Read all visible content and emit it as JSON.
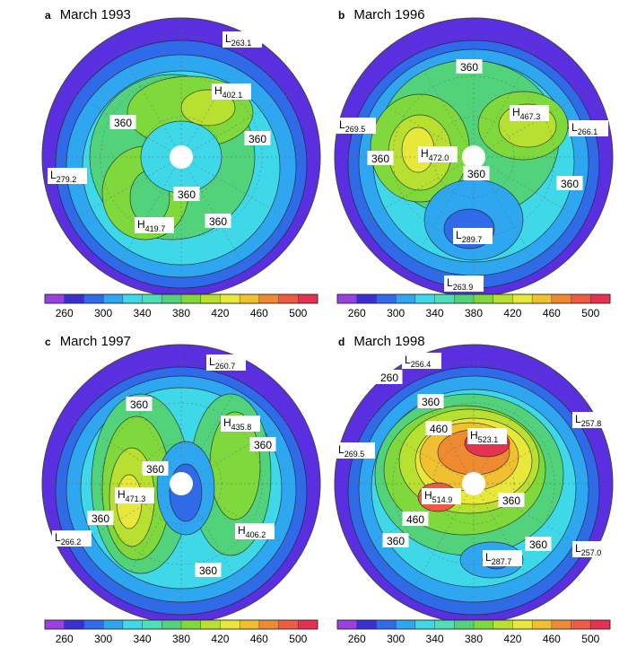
{
  "panels": [
    {
      "letter": "a",
      "title": "March 1993",
      "labels": [
        {
          "kind": "L",
          "value": "263.1"
        },
        {
          "kind": "H",
          "value": "402.1"
        },
        {
          "kind": "C",
          "value": "360"
        },
        {
          "kind": "C",
          "value": "360"
        },
        {
          "kind": "L",
          "value": "279.2"
        },
        {
          "kind": "C",
          "value": "360"
        },
        {
          "kind": "H",
          "value": "419.7"
        },
        {
          "kind": "C",
          "value": "360"
        }
      ]
    },
    {
      "letter": "b",
      "title": "March 1996",
      "labels": [
        {
          "kind": "C",
          "value": "360"
        },
        {
          "kind": "H",
          "value": "467.3"
        },
        {
          "kind": "L",
          "value": "269.5"
        },
        {
          "kind": "L",
          "value": "266.1"
        },
        {
          "kind": "C",
          "value": "360"
        },
        {
          "kind": "H",
          "value": "472.0"
        },
        {
          "kind": "C",
          "value": "360"
        },
        {
          "kind": "C",
          "value": "360"
        },
        {
          "kind": "L",
          "value": "289.7"
        },
        {
          "kind": "L",
          "value": "263.9"
        }
      ]
    },
    {
      "letter": "c",
      "title": "March 1997",
      "labels": [
        {
          "kind": "L",
          "value": "260.7"
        },
        {
          "kind": "C",
          "value": "360"
        },
        {
          "kind": "H",
          "value": "435.8"
        },
        {
          "kind": "C",
          "value": "360"
        },
        {
          "kind": "C",
          "value": "360"
        },
        {
          "kind": "H",
          "value": "471.3"
        },
        {
          "kind": "C",
          "value": "360"
        },
        {
          "kind": "L",
          "value": "266.2"
        },
        {
          "kind": "H",
          "value": "406.2"
        },
        {
          "kind": "C",
          "value": "360"
        }
      ]
    },
    {
      "letter": "d",
      "title": "March 1998",
      "labels": [
        {
          "kind": "L",
          "value": "256.4"
        },
        {
          "kind": "C",
          "value": "260"
        },
        {
          "kind": "C",
          "value": "360"
        },
        {
          "kind": "C",
          "value": "460"
        },
        {
          "kind": "H",
          "value": "523.1"
        },
        {
          "kind": "L",
          "value": "257.8"
        },
        {
          "kind": "L",
          "value": "269.5"
        },
        {
          "kind": "H",
          "value": "514.9"
        },
        {
          "kind": "C",
          "value": "360"
        },
        {
          "kind": "C",
          "value": "460"
        },
        {
          "kind": "C",
          "value": "360"
        },
        {
          "kind": "C",
          "value": "360"
        },
        {
          "kind": "L",
          "value": "287.7"
        },
        {
          "kind": "L",
          "value": "257.0"
        }
      ]
    }
  ],
  "colorbar": {
    "ticks": [
      "260",
      "300",
      "340",
      "380",
      "420",
      "460",
      "500"
    ],
    "colors": [
      "#9a3fe0",
      "#3a2fd0",
      "#2f6ae8",
      "#2fa6f0",
      "#3fd8e8",
      "#4de0b8",
      "#52d27a",
      "#7fd93c",
      "#b8e030",
      "#e8e83a",
      "#f0c030",
      "#f08a30",
      "#f05a40",
      "#e83050"
    ]
  }
}
